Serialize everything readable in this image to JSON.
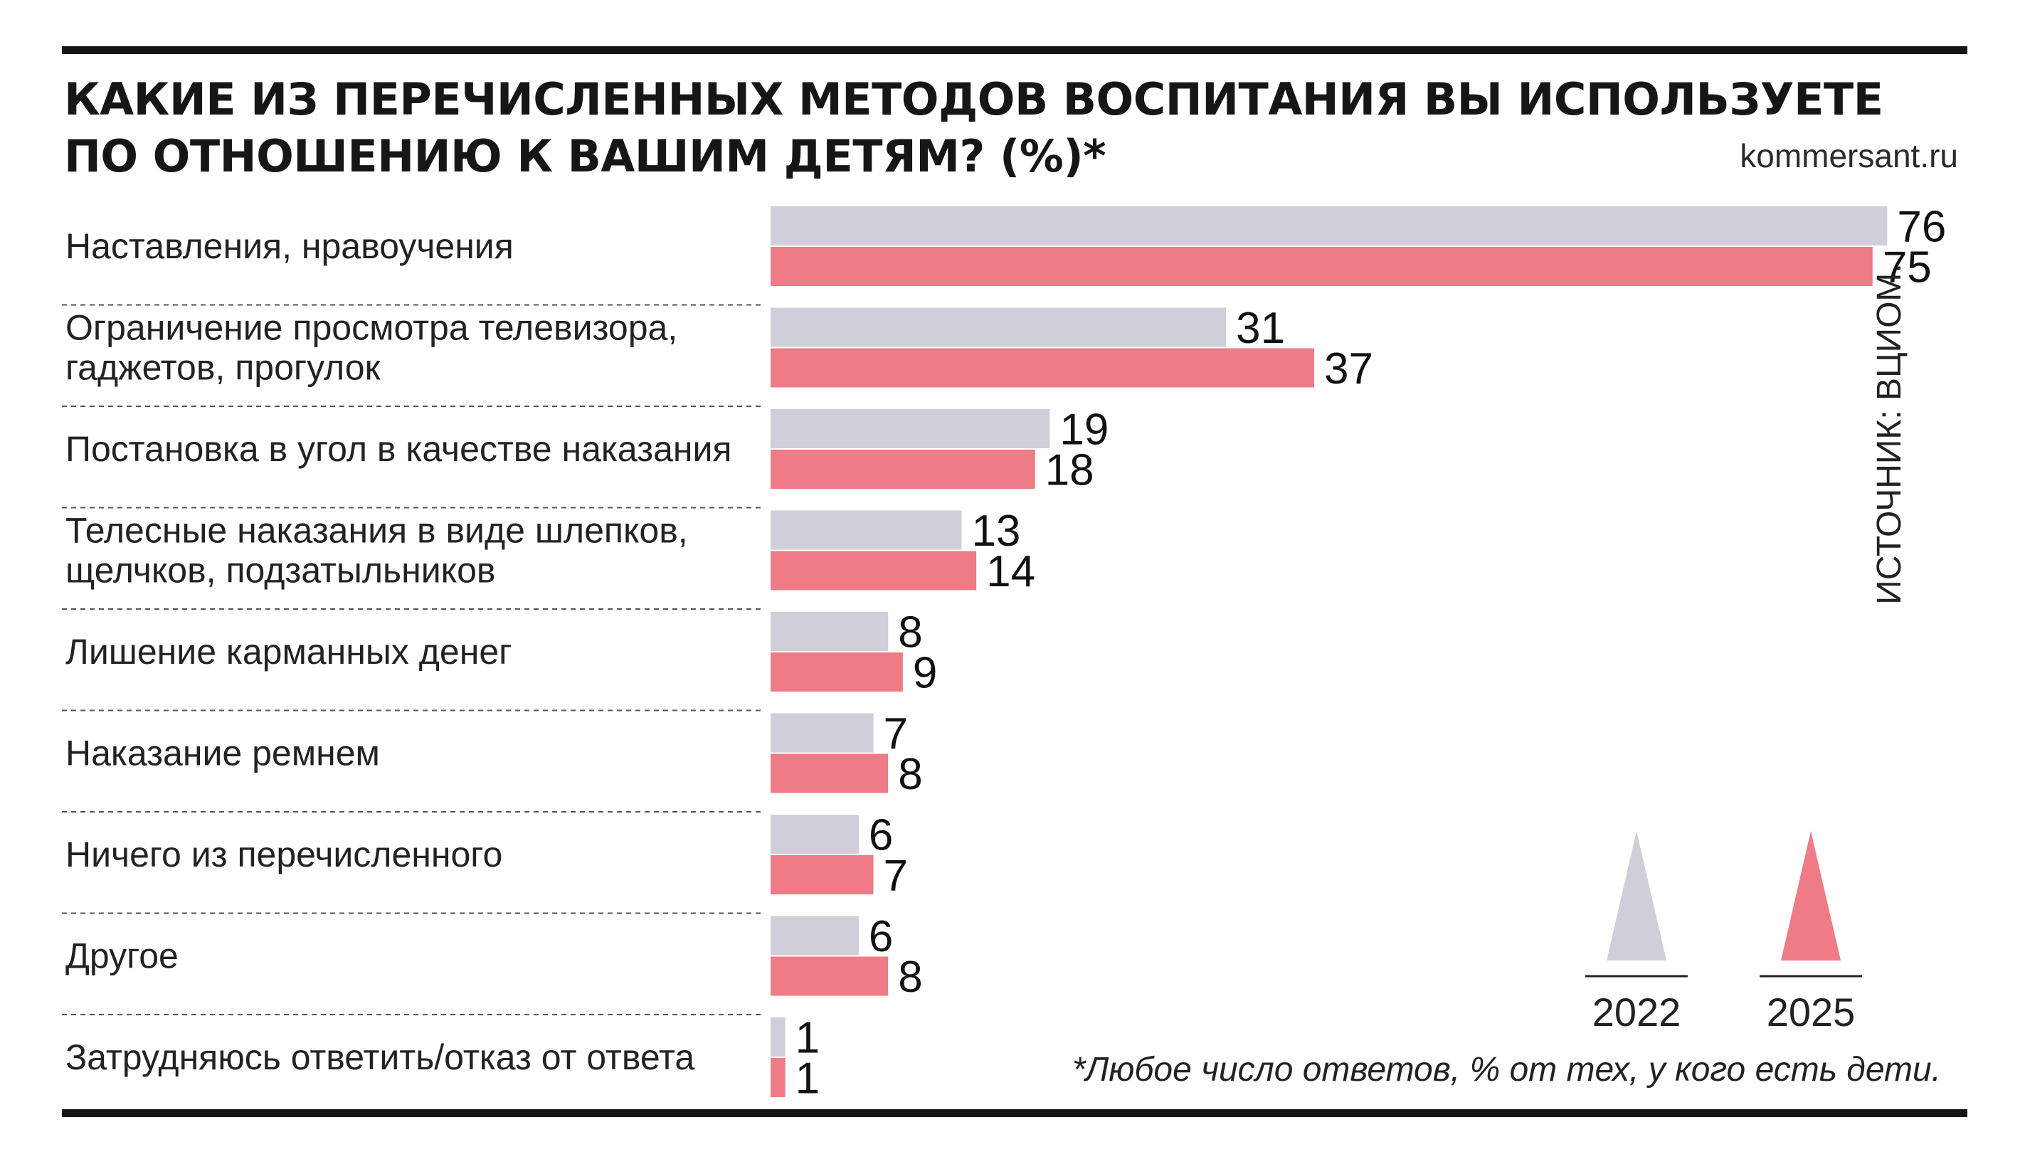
{
  "header": {
    "title_line1": "КАКИЕ ИЗ ПЕРЕЧИСЛЕННЫХ МЕТОДОВ ВОСПИТАНИЯ ВЫ ИСПОЛЬЗУЕТЕ",
    "title_line2": "ПО ОТНОШЕНИЮ К ВАШИМ ДЕТЯМ? (%)*",
    "site": "kommersant.ru"
  },
  "source": "ИСТОЧНИК: ВЦИОМ.",
  "footnote": "*Любое число ответов, % от тех, у кого есть дети.",
  "colors": {
    "series_2022": "#d0ced9",
    "series_2025": "#ee7b86",
    "rule": "#151515"
  },
  "chart_data": {
    "type": "bar",
    "orientation": "horizontal",
    "categories": [
      [
        "Наставления, нравоучения"
      ],
      [
        "Ограничение просмотра телевизора,",
        "гаджетов, прогулок"
      ],
      [
        "Постановка в угол в качестве наказания"
      ],
      [
        "Телесные наказания в виде шлепков,",
        "щелчков, подзатыльников"
      ],
      [
        "Лишение карманных денег"
      ],
      [
        "Наказание ремнем"
      ],
      [
        "Ничего из перечисленного"
      ],
      [
        "Другое"
      ],
      [
        "Затрудняюсь ответить/отказ от ответа"
      ]
    ],
    "series": [
      {
        "name": "2022",
        "values": [
          76,
          31,
          19,
          13,
          8,
          7,
          6,
          6,
          1
        ]
      },
      {
        "name": "2025",
        "values": [
          75,
          37,
          18,
          14,
          9,
          8,
          7,
          8,
          1
        ]
      }
    ],
    "legend": {
      "placement": "bottom-right",
      "marker": "triangle"
    }
  }
}
